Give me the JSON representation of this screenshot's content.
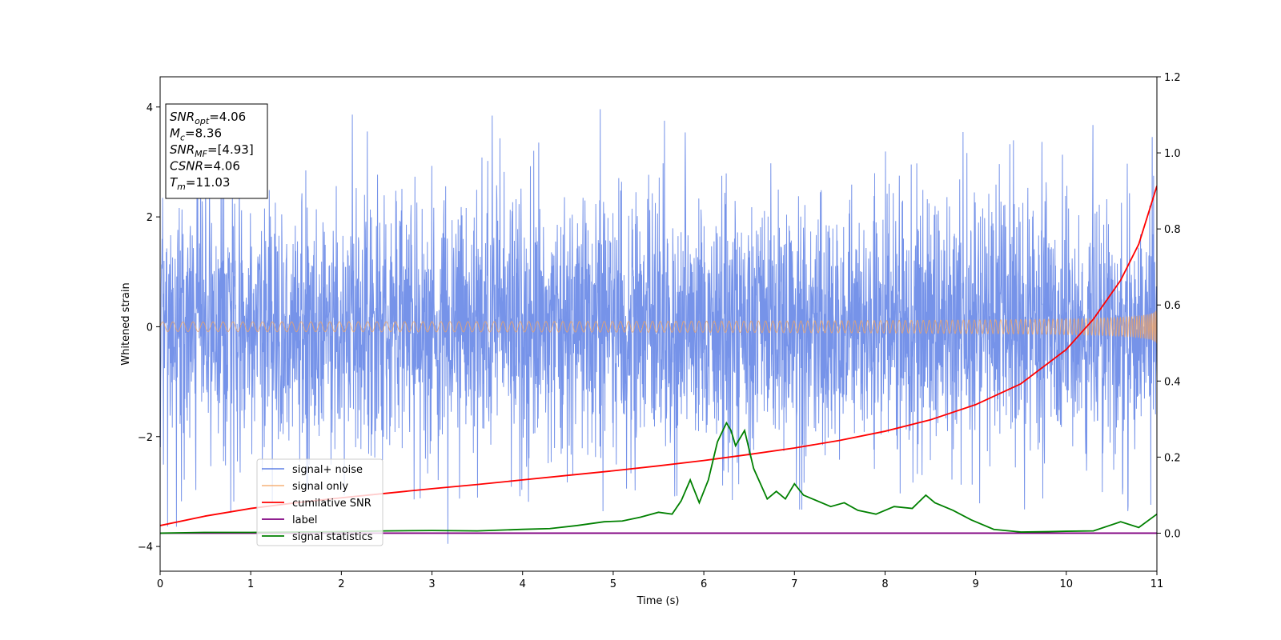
{
  "chart_data": {
    "type": "line",
    "title": "",
    "xlabel": "Time (s)",
    "ylabel": "Whitened strain",
    "ylabel_right": "",
    "xlim": [
      0,
      11
    ],
    "ylim": [
      -4.45,
      4.55
    ],
    "ylim_right": [
      -0.1,
      1.2
    ],
    "x_ticks": [
      "0",
      "1",
      "2",
      "3",
      "4",
      "5",
      "6",
      "7",
      "8",
      "9",
      "10",
      "11"
    ],
    "y_ticks": [
      "−4",
      "−2",
      "0",
      "2",
      "4"
    ],
    "y_ticks_right": [
      "0.0",
      "0.2",
      "0.4",
      "0.6",
      "0.8",
      "1.0",
      "1.2"
    ],
    "grid": false,
    "legend_position": "lower-left",
    "annotation": {
      "lines": [
        {
          "base": "SNR",
          "sub": "opt",
          "rest": "=4.06"
        },
        {
          "base": "M",
          "sub": "c",
          "rest": "=8.36"
        },
        {
          "base": "SNR",
          "sub": "MF",
          "rest": "=[4.93]"
        },
        {
          "base": "CSNR",
          "sub": "",
          "rest": "=4.06"
        },
        {
          "base": "T",
          "sub": "m",
          "rest": "=11.03"
        }
      ]
    },
    "series": [
      {
        "name": "signal+ noise",
        "axis": "left",
        "color": "#4169e1",
        "kind": "noise",
        "sigma": 1.0,
        "x_range": [
          0,
          11
        ]
      },
      {
        "name": "signal only",
        "axis": "left",
        "color": "#f4a460",
        "kind": "chirp",
        "x_range": [
          0,
          11
        ],
        "amplitude_start": 0.01,
        "amplitude_end": 0.33
      },
      {
        "name": "cumilative SNR",
        "axis": "right",
        "color": "#ff0000",
        "x": [
          0,
          0.5,
          1,
          1.5,
          2,
          2.5,
          3,
          3.5,
          4,
          4.5,
          5,
          5.5,
          6,
          6.5,
          7,
          7.5,
          8,
          8.5,
          9,
          9.5,
          10,
          10.3,
          10.6,
          10.8,
          11
        ],
        "y": [
          0.02,
          0.045,
          0.065,
          0.08,
          0.093,
          0.105,
          0.117,
          0.128,
          0.14,
          0.152,
          0.164,
          0.177,
          0.191,
          0.207,
          0.224,
          0.244,
          0.268,
          0.298,
          0.338,
          0.393,
          0.483,
          0.563,
          0.665,
          0.76,
          0.913
        ]
      },
      {
        "name": "label",
        "axis": "right",
        "color": "#800080",
        "x": [
          0,
          11
        ],
        "y": [
          0,
          0
        ]
      },
      {
        "name": "signal statistics",
        "axis": "right",
        "color": "#008000",
        "x": [
          0,
          0.5,
          1,
          1.5,
          2,
          2.5,
          3,
          3.5,
          4,
          4.3,
          4.6,
          4.9,
          5.1,
          5.3,
          5.5,
          5.65,
          5.75,
          5.85,
          5.95,
          6.05,
          6.15,
          6.25,
          6.3,
          6.35,
          6.45,
          6.55,
          6.7,
          6.8,
          6.9,
          7.0,
          7.1,
          7.2,
          7.4,
          7.55,
          7.7,
          7.9,
          8.1,
          8.3,
          8.45,
          8.55,
          8.75,
          8.95,
          9.2,
          9.5,
          9.8,
          10.0,
          10.3,
          10.6,
          10.8,
          11
        ],
        "y": [
          0.0,
          0.002,
          0.002,
          0.003,
          0.004,
          0.006,
          0.007,
          0.006,
          0.01,
          0.012,
          0.02,
          0.03,
          0.032,
          0.042,
          0.055,
          0.05,
          0.085,
          0.14,
          0.08,
          0.14,
          0.24,
          0.29,
          0.27,
          0.23,
          0.27,
          0.17,
          0.09,
          0.11,
          0.09,
          0.13,
          0.1,
          0.09,
          0.07,
          0.08,
          0.06,
          0.05,
          0.07,
          0.065,
          0.1,
          0.08,
          0.06,
          0.035,
          0.01,
          0.003,
          0.004,
          0.005,
          0.006,
          0.03,
          0.015,
          0.05
        ]
      }
    ]
  }
}
